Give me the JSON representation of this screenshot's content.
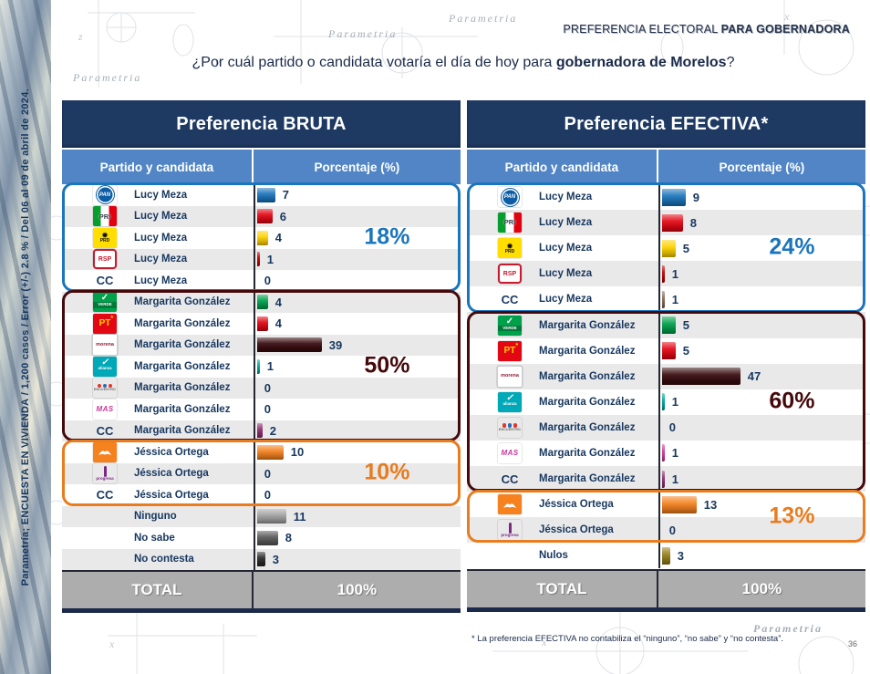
{
  "slide": {
    "kicker": {
      "normal": "PREFERENCIA ELECTORAL ",
      "bold": "PARA GOBERNADORA"
    },
    "question": {
      "prefix": "¿Por cuál partido o candidata votaría el día de hoy para ",
      "bold": "gobernadora de Morelos",
      "suffix": "?"
    },
    "sidebar": {
      "prefix": "Parametría; ",
      "bold": "ENCUESTA EN VIVIENDA",
      "suffix": " / 1,200 casos / Error (+/-) 2.8 % / Del 06 al 09 de abril de 2024."
    },
    "footnote": "* La preferencia EFECTIVA no contabiliza el “ninguno”, “no sabe” y “no contesta”.",
    "page_number": "36",
    "watermark": "Parametria"
  },
  "chart_data": [
    {
      "type": "bar",
      "title": "Preferencia BRUTA",
      "columns": [
        "Partido y candidata",
        "Porcentaje (%)"
      ],
      "value_unit": "%",
      "xlim": [
        0,
        100
      ],
      "rows": [
        {
          "party": "PAN",
          "logo": "pan",
          "candidate": "Lucy Meza",
          "value": 7,
          "bar_color": "#1B75BC"
        },
        {
          "party": "PRI",
          "logo": "pri",
          "candidate": "Lucy Meza",
          "value": 6,
          "bar_color": "#E30613"
        },
        {
          "party": "PRD",
          "logo": "prd",
          "candidate": "Lucy Meza",
          "value": 4,
          "bar_color": "#FFD200"
        },
        {
          "party": "RSP",
          "logo": "rsp",
          "candidate": "Lucy Meza",
          "value": 1,
          "bar_color": "#C00000"
        },
        {
          "party": "CC",
          "logo": "cc",
          "candidate": "Lucy Meza",
          "value": 0,
          "bar_color": null
        },
        {
          "party": "VERDE",
          "logo": "verde",
          "candidate": "Margarita González",
          "value": 4,
          "bar_color": "#00A14B"
        },
        {
          "party": "PT",
          "logo": "pt",
          "candidate": "Margarita González",
          "value": 4,
          "bar_color": "#E30613"
        },
        {
          "party": "morena",
          "logo": "morena",
          "candidate": "Margarita González",
          "value": 39,
          "bar_color": "#380B0E"
        },
        {
          "party": "alianza",
          "logo": "alianza",
          "candidate": "Margarita González",
          "value": 1,
          "bar_color": "#00A8A0"
        },
        {
          "party": "encuentro",
          "logo": "encuentro",
          "candidate": "Margarita González",
          "value": 0,
          "bar_color": null
        },
        {
          "party": "MAS",
          "logo": "mas",
          "candidate": "Margarita González",
          "value": 0,
          "bar_color": null
        },
        {
          "party": "CC",
          "logo": "cc",
          "candidate": "Margarita González",
          "value": 2,
          "bar_color": "#8E2F6F"
        },
        {
          "party": "MC",
          "logo": "mc",
          "candidate": "Jéssica Ortega",
          "value": 10,
          "bar_color": "#F5821F"
        },
        {
          "party": "progresa",
          "logo": "progresa",
          "candidate": "Jéssica Ortega",
          "value": 0,
          "bar_color": null
        },
        {
          "party": "CC",
          "logo": "cc",
          "candidate": "Jéssica Ortega",
          "value": 0,
          "bar_color": null
        },
        {
          "party": "",
          "logo": null,
          "candidate": "Ninguno",
          "value": 11,
          "bar_color": "#A3A3A3"
        },
        {
          "party": "",
          "logo": null,
          "candidate": "No sabe",
          "value": 8,
          "bar_color": "#5B5B5B"
        },
        {
          "party": "",
          "logo": null,
          "candidate": "No contesta",
          "value": 3,
          "bar_color": "#2B2B2B"
        }
      ],
      "groups": [
        {
          "candidate": "Lucy Meza",
          "label": "18%",
          "color": "#1B75BC",
          "start": 0,
          "count": 5
        },
        {
          "candidate": "Margarita González",
          "label": "50%",
          "color": "#45090B",
          "start": 5,
          "count": 7
        },
        {
          "candidate": "Jéssica Ortega",
          "label": "10%",
          "color": "#E87C1E",
          "start": 12,
          "count": 3
        }
      ],
      "total": {
        "label": "TOTAL",
        "value": "100%"
      }
    },
    {
      "type": "bar",
      "title": "Preferencia EFECTIVA*",
      "columns": [
        "Partido y candidata",
        "Porcentaje (%)"
      ],
      "value_unit": "%",
      "xlim": [
        0,
        100
      ],
      "rows": [
        {
          "party": "PAN",
          "logo": "pan",
          "candidate": "Lucy Meza",
          "value": 9,
          "bar_color": "#1B75BC"
        },
        {
          "party": "PRI",
          "logo": "pri",
          "candidate": "Lucy Meza",
          "value": 8,
          "bar_color": "#E30613"
        },
        {
          "party": "PRD",
          "logo": "prd",
          "candidate": "Lucy Meza",
          "value": 5,
          "bar_color": "#FFD200"
        },
        {
          "party": "RSP",
          "logo": "rsp",
          "candidate": "Lucy Meza",
          "value": 1,
          "bar_color": "#C00000"
        },
        {
          "party": "CC",
          "logo": "cc",
          "candidate": "Lucy Meza",
          "value": 1,
          "bar_color": "#8C6A5A"
        },
        {
          "party": "VERDE",
          "logo": "verde",
          "candidate": "Margarita González",
          "value": 5,
          "bar_color": "#00A14B"
        },
        {
          "party": "PT",
          "logo": "pt",
          "candidate": "Margarita González",
          "value": 5,
          "bar_color": "#E30613"
        },
        {
          "party": "morena",
          "logo": "morena",
          "candidate": "Margarita González",
          "value": 47,
          "bar_color": "#380B0E"
        },
        {
          "party": "alianza",
          "logo": "alianza",
          "candidate": "Margarita González",
          "value": 1,
          "bar_color": "#00A8A0"
        },
        {
          "party": "encuentro",
          "logo": "encuentro",
          "candidate": "Margarita González",
          "value": 0,
          "bar_color": null
        },
        {
          "party": "MAS",
          "logo": "mas",
          "candidate": "Margarita González",
          "value": 1,
          "bar_color": "#D6399B"
        },
        {
          "party": "CC",
          "logo": "cc",
          "candidate": "Margarita González",
          "value": 1,
          "bar_color": "#8E2F6F"
        },
        {
          "party": "MC",
          "logo": "mc",
          "candidate": "Jéssica Ortega",
          "value": 13,
          "bar_color": "#F5821F"
        },
        {
          "party": "progresa",
          "logo": "progresa",
          "candidate": "Jéssica Ortega",
          "value": 0,
          "bar_color": null
        },
        {
          "party": "",
          "logo": null,
          "candidate": "Nulos",
          "value": 3,
          "bar_color": "#97801C"
        }
      ],
      "groups": [
        {
          "candidate": "Lucy Meza",
          "label": "24%",
          "color": "#1B75BC",
          "start": 0,
          "count": 5
        },
        {
          "candidate": "Margarita González",
          "label": "60%",
          "color": "#45090B",
          "start": 5,
          "count": 7
        },
        {
          "candidate": "Jéssica Ortega",
          "label": "13%",
          "color": "#E87C1E",
          "start": 12,
          "count": 2
        }
      ],
      "total": {
        "label": "TOTAL",
        "value": "100%"
      }
    }
  ]
}
